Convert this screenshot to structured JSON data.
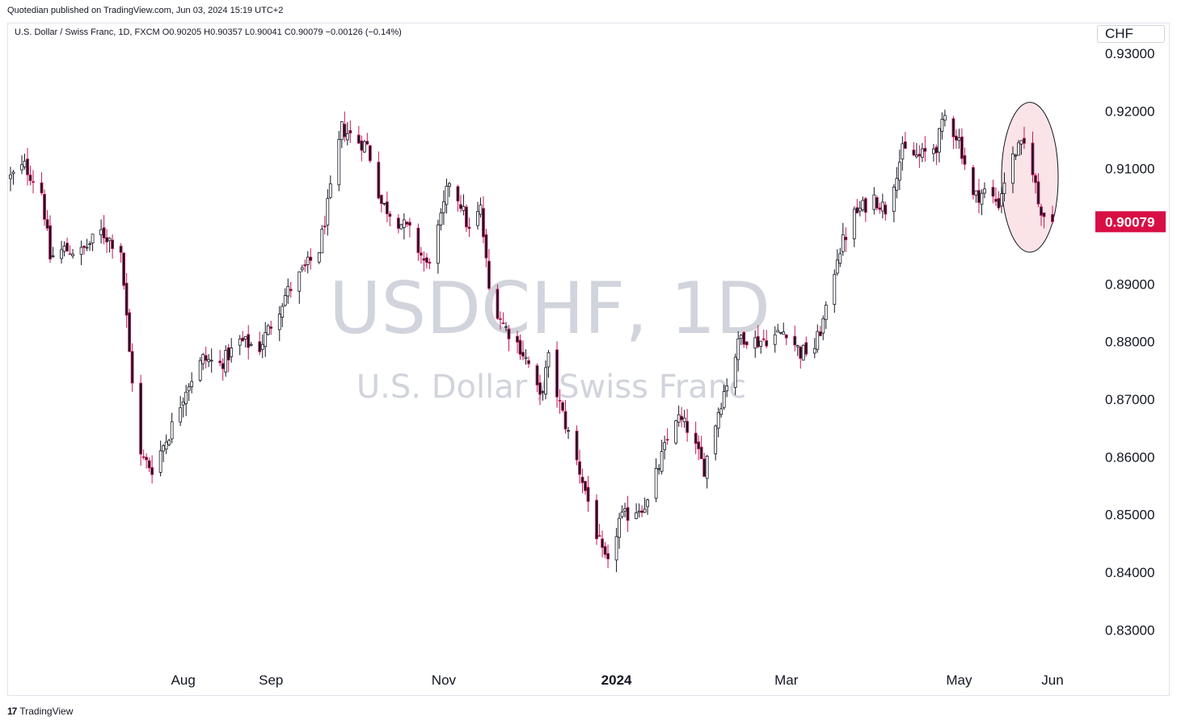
{
  "header": {
    "publisher_line": "Quotedian published on TradingView.com, Jun 03, 2024 15:19 UTC+2"
  },
  "legend": {
    "text": "U.S. Dollar / Swiss Franc, 1D, FXCM  O0.90205  H0.90357  L0.90041  C0.90079  −0.00126 (−0.14%)"
  },
  "currency": "CHF",
  "watermark": {
    "symbol": "USDCHF, 1D",
    "name": "U.S. Dollar / Swiss Franc"
  },
  "footer": {
    "logo_text": "17",
    "brand": "TradingView"
  },
  "colors": {
    "up": "#131722",
    "down": "#c2185b",
    "price_label": "#d80f45",
    "highlight_fill": "#f7d2d9",
    "watermark": "#d1d4dc",
    "grid_border": "#e0e3eb"
  },
  "chart_data": {
    "type": "candlestick",
    "symbol": "USDCHF",
    "interval": "1D",
    "source": "FXCM",
    "ohlc_last": {
      "open": 0.90205,
      "high": 0.90357,
      "low": 0.90041,
      "close": 0.90079,
      "change": -0.00126,
      "change_pct": -0.14
    },
    "y_ticks": [
      "0.93000",
      "0.92000",
      "0.91000",
      "0.90000",
      "0.89000",
      "0.88000",
      "0.87000",
      "0.86000",
      "0.85000",
      "0.84000",
      "0.83000"
    ],
    "y_ticks_values": [
      0.93,
      0.92,
      0.91,
      0.9,
      0.89,
      0.88,
      0.87,
      0.86,
      0.85,
      0.84,
      0.83
    ],
    "ylim": [
      0.8284,
      0.9332
    ],
    "x_ticks": [
      {
        "label": "Aug",
        "date": "2023-08-01",
        "bold": false
      },
      {
        "label": "Sep",
        "date": "2023-09-01",
        "bold": false
      },
      {
        "label": "Nov",
        "date": "2023-11-01",
        "bold": false
      },
      {
        "label": "2024",
        "date": "2024-01-01",
        "bold": true
      },
      {
        "label": "Mar",
        "date": "2024-03-01",
        "bold": false
      },
      {
        "label": "May",
        "date": "2024-05-01",
        "bold": false
      },
      {
        "label": "Jun",
        "date": "2024-06-03",
        "bold": false
      }
    ],
    "x_range": [
      "2023-06-01",
      "2024-06-03"
    ],
    "last_price_label": "0.90079",
    "last_price": 0.90079,
    "highlight": {
      "shape": "ellipse",
      "from_date": "2024-05-16",
      "to_date": "2024-06-05",
      "price_top": 0.9215,
      "price_bottom": 0.8955
    },
    "close_path": [
      [
        "2023-06-01",
        0.9085
      ],
      [
        "2023-06-06",
        0.9105
      ],
      [
        "2023-06-12",
        0.906
      ],
      [
        "2023-06-15",
        0.8945
      ],
      [
        "2023-06-20",
        0.896
      ],
      [
        "2023-06-26",
        0.8955
      ],
      [
        "2023-07-03",
        0.899
      ],
      [
        "2023-07-10",
        0.896
      ],
      [
        "2023-07-13",
        0.878
      ],
      [
        "2023-07-17",
        0.86
      ],
      [
        "2023-07-21",
        0.858
      ],
      [
        "2023-07-27",
        0.864
      ],
      [
        "2023-08-02",
        0.872
      ],
      [
        "2023-08-08",
        0.877
      ],
      [
        "2023-08-14",
        0.876
      ],
      [
        "2023-08-21",
        0.88
      ],
      [
        "2023-08-28",
        0.879
      ],
      [
        "2023-09-01",
        0.883
      ],
      [
        "2023-09-06",
        0.888
      ],
      [
        "2023-09-12",
        0.892
      ],
      [
        "2023-09-18",
        0.896
      ],
      [
        "2023-09-22",
        0.906
      ],
      [
        "2023-09-26",
        0.917
      ],
      [
        "2023-10-01",
        0.915
      ],
      [
        "2023-10-05",
        0.914
      ],
      [
        "2023-10-10",
        0.904
      ],
      [
        "2023-10-16",
        0.901
      ],
      [
        "2023-10-20",
        0.899
      ],
      [
        "2023-10-26",
        0.893
      ],
      [
        "2023-10-31",
        0.901
      ],
      [
        "2023-11-03",
        0.908
      ],
      [
        "2023-11-07",
        0.904
      ],
      [
        "2023-11-10",
        0.899
      ],
      [
        "2023-11-14",
        0.903
      ],
      [
        "2023-11-17",
        0.889
      ],
      [
        "2023-11-22",
        0.883
      ],
      [
        "2023-11-28",
        0.879
      ],
      [
        "2023-12-01",
        0.876
      ],
      [
        "2023-12-05",
        0.87
      ],
      [
        "2023-12-08",
        0.877
      ],
      [
        "2023-12-12",
        0.869
      ],
      [
        "2023-12-15",
        0.864
      ],
      [
        "2023-12-20",
        0.856
      ],
      [
        "2023-12-27",
        0.843
      ],
      [
        "2023-12-29",
        0.841
      ],
      [
        "2024-01-02",
        0.849
      ],
      [
        "2024-01-08",
        0.851
      ],
      [
        "2024-01-12",
        0.852
      ],
      [
        "2024-01-17",
        0.86
      ],
      [
        "2024-01-22",
        0.867
      ],
      [
        "2024-01-26",
        0.865
      ],
      [
        "2024-02-01",
        0.858
      ],
      [
        "2024-02-06",
        0.868
      ],
      [
        "2024-02-09",
        0.873
      ],
      [
        "2024-02-14",
        0.881
      ],
      [
        "2024-02-20",
        0.88
      ],
      [
        "2024-02-26",
        0.881
      ],
      [
        "2024-03-01",
        0.882
      ],
      [
        "2024-03-06",
        0.878
      ],
      [
        "2024-03-11",
        0.879
      ],
      [
        "2024-03-15",
        0.885
      ],
      [
        "2024-03-19",
        0.895
      ],
      [
        "2024-03-25",
        0.902
      ],
      [
        "2024-04-01",
        0.905
      ],
      [
        "2024-04-05",
        0.903
      ],
      [
        "2024-04-11",
        0.913
      ],
      [
        "2024-04-17",
        0.912
      ],
      [
        "2024-04-23",
        0.914
      ],
      [
        "2024-04-26",
        0.919
      ],
      [
        "2024-05-01",
        0.915
      ],
      [
        "2024-05-06",
        0.905
      ],
      [
        "2024-05-10",
        0.906
      ],
      [
        "2024-05-15",
        0.904
      ],
      [
        "2024-05-17",
        0.908
      ],
      [
        "2024-05-21",
        0.913
      ],
      [
        "2024-05-24",
        0.914
      ],
      [
        "2024-05-27",
        0.91
      ],
      [
        "2024-05-29",
        0.904
      ],
      [
        "2024-05-31",
        0.902
      ],
      [
        "2024-06-03",
        0.90079
      ]
    ]
  }
}
